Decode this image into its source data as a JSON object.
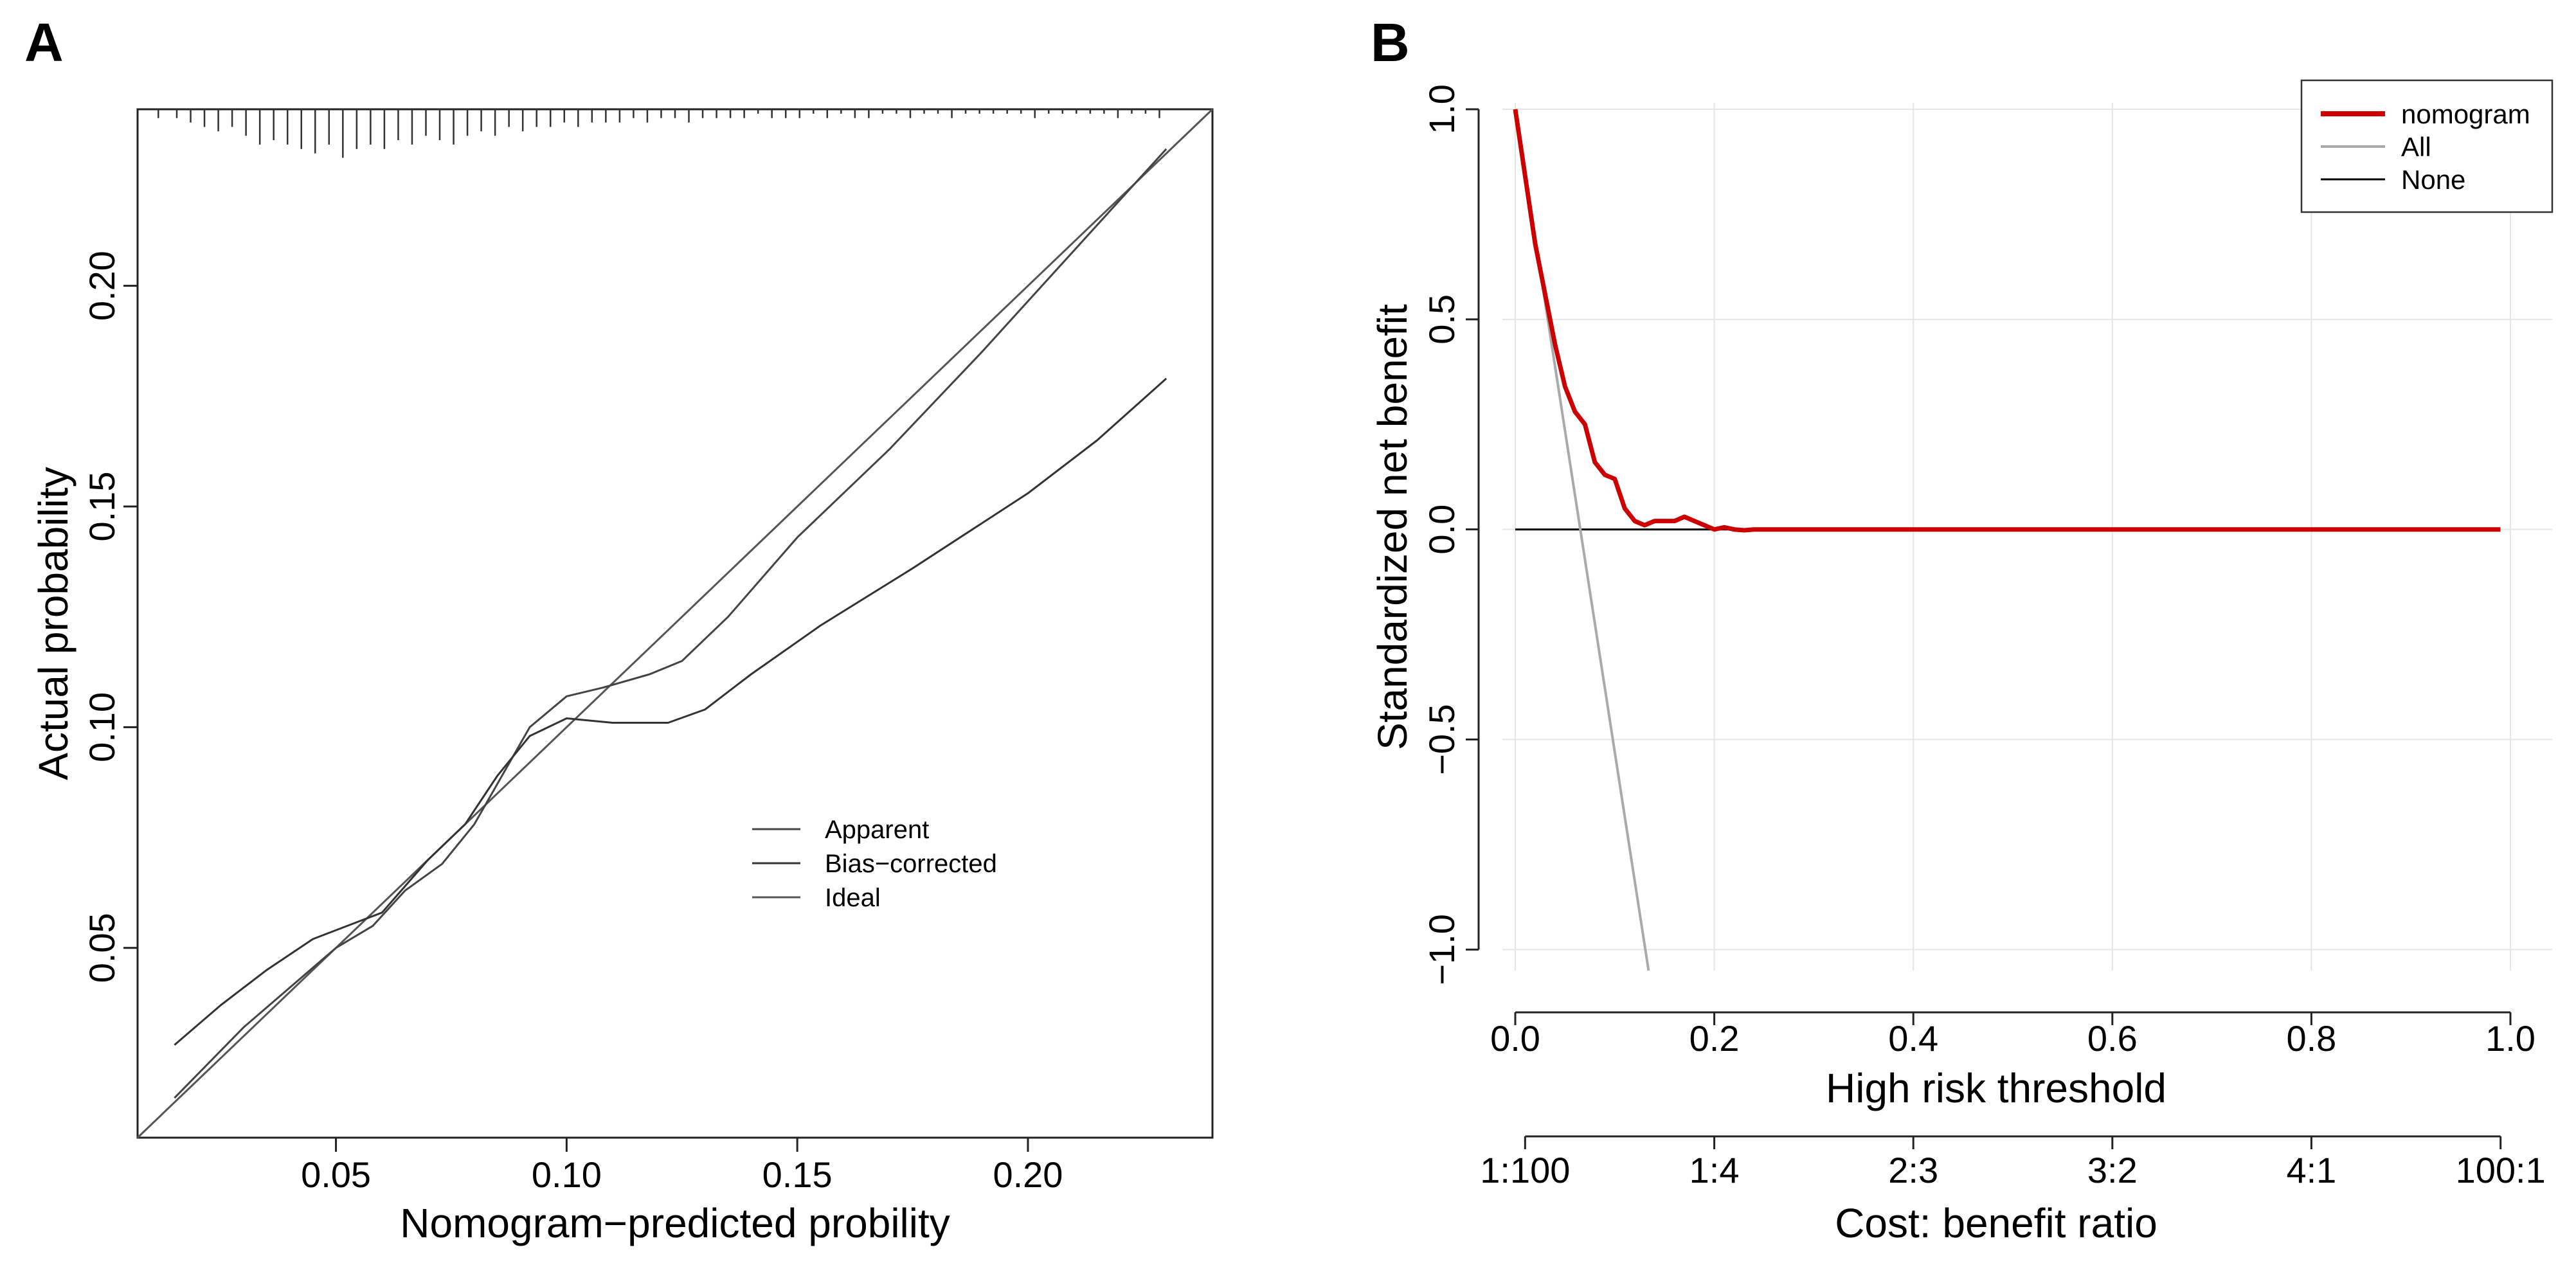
{
  "chart_data": [
    {
      "panel": "A",
      "type": "line",
      "title": "",
      "xlabel": "Nomogram−predicted probility",
      "ylabel": "Actual probability",
      "xlim": [
        0.007,
        0.24
      ],
      "ylim": [
        0.007,
        0.24
      ],
      "xticks": [
        0.05,
        0.1,
        0.15,
        0.2
      ],
      "xtick_labels": [
        "0.05",
        "0.10",
        "0.15",
        "0.20"
      ],
      "yticks": [
        0.05,
        0.1,
        0.15,
        0.2
      ],
      "ytick_labels": [
        "0.05",
        "0.10",
        "0.15",
        "0.20"
      ],
      "legend": [
        "Apparent",
        "Bias−corrected",
        "Ideal"
      ],
      "legend_position": "bottom-right",
      "series": [
        {
          "name": "Ideal",
          "color": "#555555",
          "x": [
            0.007,
            0.24
          ],
          "y": [
            0.007,
            0.24
          ]
        },
        {
          "name": "Apparent",
          "color": "#444444",
          "x": [
            0.015,
            0.03,
            0.05,
            0.058,
            0.065,
            0.073,
            0.08,
            0.086,
            0.092,
            0.1,
            0.108,
            0.118,
            0.125,
            0.135,
            0.15,
            0.17,
            0.19,
            0.21,
            0.23
          ],
          "y": [
            0.016,
            0.032,
            0.05,
            0.055,
            0.063,
            0.069,
            0.078,
            0.089,
            0.1,
            0.107,
            0.109,
            0.112,
            0.115,
            0.125,
            0.143,
            0.163,
            0.185,
            0.208,
            0.231
          ]
        },
        {
          "name": "Bias−corrected",
          "color": "#333333",
          "x": [
            0.015,
            0.025,
            0.035,
            0.045,
            0.055,
            0.06,
            0.065,
            0.07,
            0.078,
            0.085,
            0.092,
            0.1,
            0.11,
            0.115,
            0.122,
            0.13,
            0.14,
            0.155,
            0.175,
            0.2,
            0.215,
            0.23
          ],
          "y": [
            0.028,
            0.037,
            0.045,
            0.052,
            0.056,
            0.058,
            0.064,
            0.07,
            0.078,
            0.089,
            0.098,
            0.102,
            0.101,
            0.101,
            0.101,
            0.104,
            0.112,
            0.123,
            0.136,
            0.153,
            0.165,
            0.179
          ]
        }
      ],
      "rug": {
        "x": [
          0.0115,
          0.0155,
          0.0185,
          0.0215,
          0.0245,
          0.0275,
          0.0305,
          0.0335,
          0.0365,
          0.0395,
          0.0425,
          0.0455,
          0.0485,
          0.0515,
          0.0545,
          0.0575,
          0.0605,
          0.0635,
          0.0665,
          0.0695,
          0.0725,
          0.0755,
          0.0785,
          0.0815,
          0.0845,
          0.0875,
          0.0905,
          0.0935,
          0.0965,
          0.0995,
          0.1025,
          0.1055,
          0.1085,
          0.1115,
          0.1145,
          0.1175,
          0.1205,
          0.1235,
          0.1265,
          0.1295,
          0.1325,
          0.1355,
          0.1385,
          0.1415,
          0.1445,
          0.1475,
          0.1505,
          0.1535,
          0.1565,
          0.1595,
          0.1625,
          0.1655,
          0.1685,
          0.1715,
          0.1745,
          0.1775,
          0.1805,
          0.1835,
          0.1865,
          0.1895,
          0.1925,
          0.1955,
          0.1985,
          0.2015,
          0.2045,
          0.2075,
          0.2105,
          0.2135,
          0.2165,
          0.2195,
          0.2225,
          0.2255,
          0.2285
        ],
        "length": [
          0.002,
          0.002,
          0.003,
          0.004,
          0.005,
          0.004,
          0.006,
          0.008,
          0.007,
          0.008,
          0.009,
          0.01,
          0.008,
          0.011,
          0.009,
          0.008,
          0.009,
          0.007,
          0.008,
          0.006,
          0.007,
          0.008,
          0.006,
          0.005,
          0.006,
          0.004,
          0.005,
          0.004,
          0.004,
          0.003,
          0.004,
          0.003,
          0.003,
          0.003,
          0.002,
          0.003,
          0.002,
          0.002,
          0.003,
          0.002,
          0.002,
          0.002,
          0.002,
          0.001,
          0.002,
          0.002,
          0.002,
          0.001,
          0.002,
          0.001,
          0.002,
          0.002,
          0.001,
          0.001,
          0.002,
          0.001,
          0.001,
          0.002,
          0.001,
          0.001,
          0.001,
          0.001,
          0.001,
          0.002,
          0.001,
          0.001,
          0.001,
          0.001,
          0.001,
          0.002,
          0.001,
          0.001,
          0.002
        ]
      }
    },
    {
      "panel": "B",
      "type": "line",
      "title": "",
      "xlabel": "High risk threshold",
      "ylabel": "Standardized net benefit",
      "xlabel2": "Cost: benefit ratio",
      "xlim": [
        0.0,
        1.0
      ],
      "ylim": [
        -1.05,
        1.0
      ],
      "grid": true,
      "xticks": [
        0.0,
        0.2,
        0.4,
        0.6,
        0.8,
        1.0
      ],
      "xtick_labels": [
        "0.0",
        "0.2",
        "0.4",
        "0.6",
        "0.8",
        "1.0"
      ],
      "yticks": [
        -1.0,
        -0.5,
        0.0,
        0.5,
        1.0
      ],
      "ytick_labels": [
        "−1.0",
        "−0.5",
        "0.0",
        "0.5",
        "1.0"
      ],
      "x2ticks": [
        0.0099,
        0.2,
        0.4,
        0.6,
        0.8,
        0.9901
      ],
      "x2tick_labels": [
        "1:100",
        "1:4",
        "2:3",
        "3:2",
        "4:1",
        "100:1"
      ],
      "legend": [
        "nomogram",
        "All",
        "None"
      ],
      "legend_position": "top-right",
      "series": [
        {
          "name": "nomogram",
          "color": "#cc0000",
          "x": [
            0.0,
            0.01,
            0.02,
            0.03,
            0.04,
            0.05,
            0.06,
            0.07,
            0.08,
            0.09,
            0.1,
            0.11,
            0.12,
            0.13,
            0.14,
            0.15,
            0.16,
            0.17,
            0.18,
            0.19,
            0.2,
            0.21,
            0.22,
            0.23,
            0.24,
            0.25,
            0.26,
            0.3,
            0.5,
            0.7,
            0.9,
            0.99
          ],
          "y": [
            1.0,
            0.84,
            0.68,
            0.56,
            0.44,
            0.34,
            0.28,
            0.25,
            0.16,
            0.13,
            0.12,
            0.05,
            0.02,
            0.01,
            0.02,
            0.02,
            0.02,
            0.03,
            0.02,
            0.01,
            0.0,
            0.005,
            0.0,
            -0.002,
            0.0,
            0.0,
            0.0,
            0.0,
            0.0,
            0.0,
            0.0,
            0.0
          ]
        },
        {
          "name": "All",
          "color": "#aaaaaa",
          "x": [
            0.0,
            0.134
          ],
          "y": [
            1.0,
            -1.05
          ]
        },
        {
          "name": "None",
          "color": "#000000",
          "x": [
            0.0,
            0.99
          ],
          "y": [
            0.0,
            0.0
          ]
        }
      ]
    }
  ]
}
